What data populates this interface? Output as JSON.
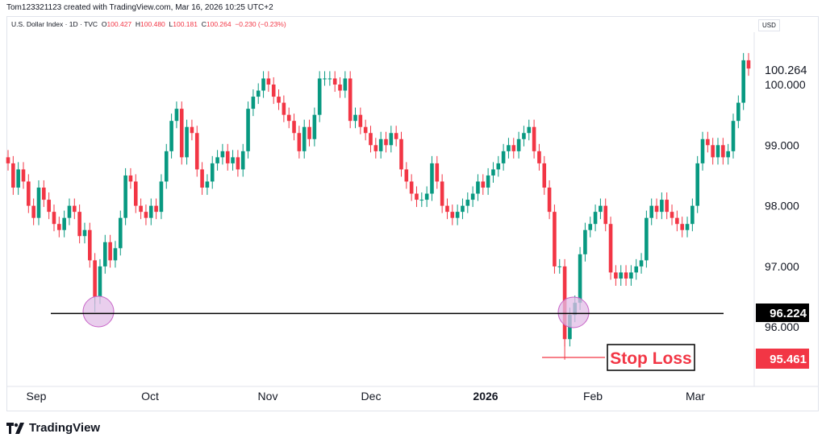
{
  "credit": "Tom123321123 created with TradingView.com, Mar 16, 2026 10:25 UTC+2",
  "legend": {
    "symbol": "U.S. Dollar Index · 1D · TVC",
    "o_label": "O",
    "o": "100.427",
    "h_label": "H",
    "h": "100.480",
    "l_label": "L",
    "l": "100.181",
    "c_label": "C",
    "c": "100.264",
    "change": "−0.230 (−0.23%)"
  },
  "currency": "USD",
  "brand": "TradingView",
  "colors": {
    "up": "#089981",
    "down": "#f23645",
    "line": "#000000",
    "circle": "#e1bee7"
  },
  "chart_data": {
    "type": "candlestick",
    "title": "U.S. Dollar Index · 1D · TVC",
    "ylim": [
      95.2,
      100.8
    ],
    "y_ticks": [
      "100.000",
      "99.000",
      "98.000",
      "97.000",
      "96.000"
    ],
    "y_tick_values": [
      100,
      99,
      98,
      97,
      96
    ],
    "x_ticks": [
      "Sep",
      "Oct",
      "Nov",
      "Dec",
      "2026",
      "Feb",
      "Mar"
    ],
    "close": [
      98.7,
      98.3,
      98.6,
      98.4,
      98.0,
      97.8,
      98.3,
      98.1,
      97.9,
      97.7,
      97.6,
      97.8,
      98.0,
      97.9,
      97.5,
      97.6,
      97.1,
      96.5,
      97.0,
      97.4,
      97.1,
      97.3,
      97.8,
      98.5,
      98.4,
      98.0,
      97.9,
      97.8,
      98.0,
      97.9,
      98.4,
      98.9,
      99.4,
      99.6,
      98.8,
      99.3,
      99.2,
      98.6,
      98.3,
      98.4,
      98.7,
      98.8,
      98.9,
      98.7,
      98.8,
      98.6,
      98.9,
      99.6,
      99.8,
      99.9,
      100.1,
      100.0,
      99.8,
      99.7,
      99.5,
      99.4,
      99.2,
      98.9,
      99.3,
      99.1,
      99.5,
      100.1,
      100.1,
      100.1,
      100.0,
      99.9,
      100.1,
      99.4,
      99.5,
      99.3,
      99.2,
      99.0,
      98.9,
      99.1,
      99.0,
      99.2,
      99.1,
      98.6,
      98.4,
      98.2,
      98.1,
      98.1,
      98.2,
      98.7,
      98.4,
      98.0,
      97.9,
      97.8,
      97.9,
      98.0,
      98.1,
      98.2,
      98.4,
      98.3,
      98.5,
      98.6,
      98.7,
      98.9,
      99.0,
      98.9,
      99.1,
      99.2,
      99.3,
      98.9,
      98.7,
      98.3,
      97.9,
      97.0,
      97.0,
      95.8,
      96.2,
      96.4,
      97.2,
      97.6,
      97.7,
      97.9,
      98.0,
      97.7,
      96.9,
      96.8,
      96.9,
      96.8,
      96.9,
      97.0,
      97.1,
      97.8,
      98.0,
      97.9,
      98.1,
      97.9,
      97.8,
      97.7,
      97.6,
      97.7,
      98.0,
      98.7,
      99.1,
      99.0,
      98.8,
      99.0,
      98.8,
      98.9,
      99.4,
      99.7,
      100.4,
      100.264
    ],
    "horizontal_level": {
      "value": 96.224,
      "label": "96.224"
    },
    "stop_loss": {
      "value": 95.461,
      "label": "95.461",
      "text": "Stop Loss"
    },
    "last_price": {
      "value": 100.264,
      "label": "100.264"
    },
    "highlighted_lows": [
      "Sep",
      "Jan"
    ]
  }
}
